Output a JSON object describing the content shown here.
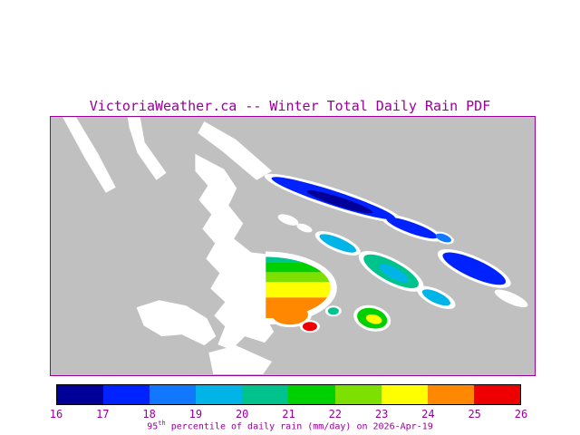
{
  "title": "VictoriaWeather.ca -- Winter Total Daily Rain PDF",
  "caption": {
    "prefix": "95",
    "sup": "th",
    "rest": " percentile of daily rain (mm/day) on 2026-Apr-19"
  },
  "colors": {
    "accent": "#990099",
    "frame": "#990099",
    "sea": "#c0c0c0",
    "land": "#ffffff",
    "colorbar_border": "#000000",
    "background": "#ffffff"
  },
  "colorbar": {
    "min": 16,
    "max": 26,
    "ticks": [
      "16",
      "17",
      "18",
      "19",
      "20",
      "21",
      "22",
      "23",
      "24",
      "25",
      "26"
    ],
    "segment_colors": [
      "#000099",
      "#0022ff",
      "#1177ff",
      "#00b4e8",
      "#00c28c",
      "#00d000",
      "#7ee000",
      "#ffff00",
      "#ff8800",
      "#ee0000"
    ]
  },
  "map": {
    "unit": "mm/day",
    "regions": [
      {
        "name": "north-island-strip-outer",
        "value": 17.5
      },
      {
        "name": "north-island-strip-inner",
        "value": 16.5
      },
      {
        "name": "mid-island-strip",
        "value": 17.5
      },
      {
        "name": "east-island-blob",
        "value": 17.5
      },
      {
        "name": "small-island-spot",
        "value": 18.5
      },
      {
        "name": "west-island-strip",
        "value": 19.5
      },
      {
        "name": "central-island-blob-outer",
        "value": 20.5
      },
      {
        "name": "central-island-blob-inner",
        "value": 19.5
      },
      {
        "name": "south-island-strip",
        "value": 19.5
      },
      {
        "name": "peninsula-fan-band-1",
        "value": 20.5
      },
      {
        "name": "peninsula-fan-band-2",
        "value": 21.5
      },
      {
        "name": "peninsula-fan-band-3",
        "value": 22.5
      },
      {
        "name": "peninsula-fan-band-4",
        "value": 23.5
      },
      {
        "name": "peninsula-fan-band-5",
        "value": 24.5
      },
      {
        "name": "harbour-blob",
        "value": 24.5
      },
      {
        "name": "city-spot",
        "value": 25.5
      },
      {
        "name": "small-spot",
        "value": 20.5
      },
      {
        "name": "southeast-blob-outer",
        "value": 21.5
      },
      {
        "name": "southeast-blob-inner",
        "value": 23.5
      }
    ]
  }
}
